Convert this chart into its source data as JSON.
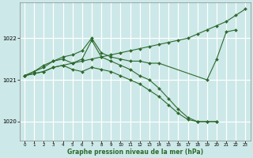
{
  "bg_color": "#cce8e8",
  "grid_color": "#ffffff",
  "line_color": "#2d6a2d",
  "title": "Graphe pression niveau de la mer (hPa)",
  "xlim": [
    -0.5,
    23.5
  ],
  "ylim": [
    1019.55,
    1022.85
  ],
  "xticks": [
    0,
    1,
    2,
    3,
    4,
    5,
    6,
    7,
    8,
    9,
    10,
    11,
    12,
    13,
    14,
    15,
    16,
    17,
    18,
    19,
    20,
    21,
    22,
    23
  ],
  "yticks": [
    1020,
    1021,
    1022
  ],
  "series": [
    {
      "x": [
        0,
        1,
        2,
        3,
        4,
        5,
        6,
        7,
        8,
        9,
        10,
        11,
        12,
        13,
        14,
        15,
        16,
        17,
        18,
        19,
        20,
        21,
        22,
        23
      ],
      "y": [
        1021.1,
        1021.15,
        1021.2,
        1021.3,
        1021.35,
        1021.4,
        1021.45,
        1021.5,
        1021.55,
        1021.6,
        1021.65,
        1021.7,
        1021.75,
        1021.8,
        1021.85,
        1021.9,
        1021.95,
        1022.0,
        1022.1,
        1022.2,
        1022.3,
        1022.4,
        1022.55,
        1022.7
      ],
      "style": "-",
      "marker": "D",
      "markersize": 2.0
    },
    {
      "x": [
        0,
        1,
        2,
        3,
        4,
        5,
        6,
        7,
        8,
        9,
        10,
        11,
        12,
        13,
        14,
        19,
        20,
        21,
        22
      ],
      "y": [
        1021.1,
        1021.2,
        1021.35,
        1021.45,
        1021.55,
        1021.6,
        1021.7,
        1022.0,
        1021.65,
        1021.55,
        1021.5,
        1021.45,
        1021.45,
        1021.4,
        1021.4,
        1021.0,
        1021.5,
        1022.15,
        1022.2
      ],
      "style": "-",
      "marker": "D",
      "markersize": 2.0
    },
    {
      "x": [
        0,
        1,
        2,
        3,
        4,
        5,
        6,
        7,
        8,
        9,
        10,
        11,
        12,
        13,
        14,
        15,
        16,
        17,
        18,
        19,
        20
      ],
      "y": [
        1021.1,
        1021.2,
        1021.3,
        1021.45,
        1021.5,
        1021.4,
        1021.5,
        1021.95,
        1021.55,
        1021.45,
        1021.35,
        1021.25,
        1021.1,
        1021.0,
        1020.8,
        1020.55,
        1020.3,
        1020.1,
        1020.0,
        1020.0,
        1020.0
      ],
      "style": "-",
      "marker": "D",
      "markersize": 2.0
    },
    {
      "x": [
        0,
        1,
        2,
        3,
        4,
        5,
        6,
        7,
        8,
        9,
        10,
        11,
        12,
        13,
        14,
        15,
        16,
        17,
        18,
        19,
        20
      ],
      "y": [
        1021.1,
        1021.15,
        1021.2,
        1021.3,
        1021.35,
        1021.25,
        1021.2,
        1021.3,
        1021.25,
        1021.2,
        1021.1,
        1021.0,
        1020.9,
        1020.75,
        1020.6,
        1020.4,
        1020.2,
        1020.05,
        1020.0,
        1020.0,
        1020.0
      ],
      "style": "-",
      "marker": "D",
      "markersize": 2.0
    }
  ]
}
